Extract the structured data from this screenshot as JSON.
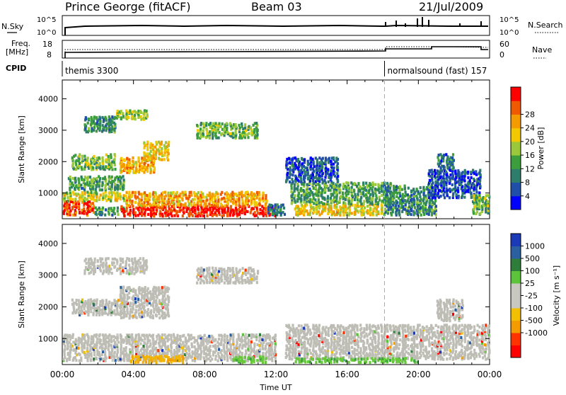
{
  "header": {
    "station": "Prince George (fitACF)",
    "beam": "Beam 03",
    "date": "21/Jul/2009"
  },
  "strip_labels": {
    "nsky": "N.Sky",
    "nsearch": "N.Search",
    "freq_line1": "Freq.",
    "freq_line2": "[MHz]",
    "nave": "Nave",
    "cpid": "CPID",
    "noise_top_left": "10^5",
    "noise_bottom_left": "10^0",
    "noise_top_right": "10^5",
    "noise_bottom_right": "10^0",
    "freq_top": "18",
    "freq_bottom": "8",
    "nave_top": "60",
    "nave_bottom": "0"
  },
  "cpid_programs": [
    {
      "name": "themis 3300",
      "start_hour": 0,
      "end_hour": 18.1
    },
    {
      "name": "normalsound (fast) 157",
      "start_hour": 18.1,
      "end_hour": 24
    }
  ],
  "x_axis": {
    "label": "Time UT",
    "ticks": [
      "00:00",
      "04:00",
      "08:00",
      "12:00",
      "16:00",
      "20:00",
      "00:00"
    ]
  },
  "colors": {
    "power_scale": [
      "#0000ff",
      "#1f4fa8",
      "#2e7d6b",
      "#3c9d3c",
      "#9ac83a",
      "#f2c800",
      "#f49b00",
      "#ef5a00",
      "#ff0000"
    ],
    "velocity_scale": [
      "#ff0000",
      "#ff3300",
      "#f49b00",
      "#f2c000",
      "#c8c8c0",
      "#c8c8c0",
      "#5cc43a",
      "#2e7d3a",
      "#2a5fa0",
      "#1a3ab8"
    ],
    "ground_scatter": "#bdbdb5"
  },
  "chart_data": [
    {
      "type": "heatmap",
      "title": "",
      "xlabel": "",
      "ylabel": "Slant Range [km]",
      "x_range_hours": [
        0,
        24
      ],
      "ylim": [
        180,
        4600
      ],
      "yticks": [
        "1000",
        "2000",
        "3000",
        "4000"
      ],
      "colorbar": {
        "label": "Power [dB]",
        "range": [
          0,
          32
        ],
        "ticks": [
          "4",
          "8",
          "12",
          "16",
          "20",
          "24",
          "28"
        ]
      },
      "regions": [
        {
          "t0": 0.0,
          "t1": 1.8,
          "r0": 250,
          "r1": 700,
          "value": 28
        },
        {
          "t0": 0.0,
          "t1": 3.5,
          "r0": 700,
          "r1": 1000,
          "value": 18
        },
        {
          "t0": 1.8,
          "t1": 3.5,
          "r0": 250,
          "r1": 500,
          "value": 12
        },
        {
          "t0": 3.2,
          "t1": 12.0,
          "r0": 220,
          "r1": 550,
          "value": 30
        },
        {
          "t0": 3.5,
          "t1": 11.5,
          "r0": 550,
          "r1": 1000,
          "value": 22
        },
        {
          "t0": 0.3,
          "t1": 3.5,
          "r0": 1050,
          "r1": 1500,
          "value": 12
        },
        {
          "t0": 0.5,
          "t1": 3.0,
          "r0": 1700,
          "r1": 2200,
          "value": 14
        },
        {
          "t0": 3.2,
          "t1": 5.2,
          "r0": 1600,
          "r1": 2100,
          "value": 22
        },
        {
          "t0": 4.5,
          "t1": 6.0,
          "r0": 2000,
          "r1": 2600,
          "value": 20
        },
        {
          "t0": 1.2,
          "t1": 3.0,
          "r0": 2900,
          "r1": 3400,
          "value": 10
        },
        {
          "t0": 3.0,
          "t1": 4.8,
          "r0": 3300,
          "r1": 3600,
          "value": 16
        },
        {
          "t0": 7.5,
          "t1": 11.0,
          "r0": 2700,
          "r1": 3200,
          "value": 14
        },
        {
          "t0": 11.5,
          "t1": 12.5,
          "r0": 250,
          "r1": 600,
          "value": 8
        },
        {
          "t0": 13.0,
          "t1": 18.0,
          "r0": 250,
          "r1": 600,
          "value": 20
        },
        {
          "t0": 12.8,
          "t1": 18.5,
          "r0": 600,
          "r1": 1300,
          "value": 12
        },
        {
          "t0": 12.5,
          "t1": 15.5,
          "r0": 1300,
          "r1": 2100,
          "value": 6
        },
        {
          "t0": 18.0,
          "t1": 21.0,
          "r0": 250,
          "r1": 1200,
          "value": 10
        },
        {
          "t0": 20.5,
          "t1": 23.5,
          "r0": 800,
          "r1": 1700,
          "value": 5
        },
        {
          "t0": 21.0,
          "t1": 22.0,
          "r0": 1700,
          "r1": 2200,
          "value": 8
        },
        {
          "t0": 23.0,
          "t1": 24.0,
          "r0": 250,
          "r1": 900,
          "value": 14
        }
      ]
    },
    {
      "type": "heatmap",
      "title": "",
      "xlabel": "Time UT",
      "ylabel": "Slant Range [km]",
      "x_range_hours": [
        0,
        24
      ],
      "ylim": [
        180,
        4600
      ],
      "yticks": [
        "1000",
        "2000",
        "3000",
        "4000"
      ],
      "colorbar": {
        "label": "Velocity [m s⁻¹]",
        "ticks": [
          "1000",
          "500",
          "100",
          "25",
          "-25",
          "-100",
          "-500",
          "-1000"
        ]
      },
      "regions": [
        {
          "t0": 0.0,
          "t1": 12.0,
          "r0": 250,
          "r1": 1100,
          "value": 0
        },
        {
          "t0": 3.8,
          "t1": 6.8,
          "r0": 200,
          "r1": 420,
          "value": -200
        },
        {
          "t0": 9.5,
          "t1": 11.5,
          "r0": 200,
          "r1": 400,
          "value": 150
        },
        {
          "t0": 0.5,
          "t1": 3.5,
          "r0": 1700,
          "r1": 2200,
          "value": 0
        },
        {
          "t0": 3.2,
          "t1": 6.0,
          "r0": 1600,
          "r1": 2600,
          "value": 0
        },
        {
          "t0": 1.2,
          "t1": 4.8,
          "r0": 3000,
          "r1": 3500,
          "value": 0
        },
        {
          "t0": 7.5,
          "t1": 11.0,
          "r0": 2700,
          "r1": 3200,
          "value": 0
        },
        {
          "t0": 12.5,
          "t1": 24.0,
          "r0": 300,
          "r1": 1400,
          "value": 0
        },
        {
          "t0": 13.0,
          "t1": 20.0,
          "r0": 200,
          "r1": 350,
          "value": 150
        },
        {
          "t0": 21.0,
          "t1": 22.5,
          "r0": 1500,
          "r1": 2200,
          "value": 0
        }
      ]
    }
  ]
}
